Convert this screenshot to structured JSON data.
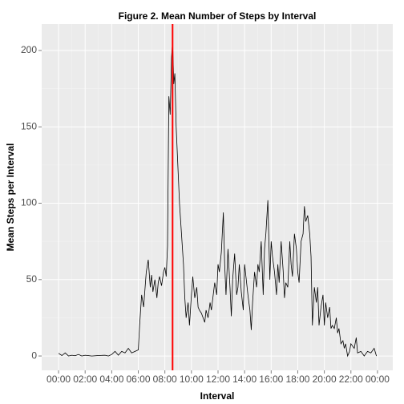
{
  "chart_data": {
    "type": "line",
    "title": "Figure 2. Mean Number of Steps by Interval",
    "x_label": "Interval",
    "y_label": "Mean Steps per Interval",
    "xlim": [
      -1.27,
      25.15
    ],
    "ylim": [
      -9.4,
      217.3
    ],
    "xticks": [
      {
        "value": 0,
        "label": "00:00"
      },
      {
        "value": 2,
        "label": "02:00"
      },
      {
        "value": 4,
        "label": "04:00"
      },
      {
        "value": 6,
        "label": "06:00"
      },
      {
        "value": 8,
        "label": "08:00"
      },
      {
        "value": 10,
        "label": "10:00"
      },
      {
        "value": 12,
        "label": "12:00"
      },
      {
        "value": 14,
        "label": "14:00"
      },
      {
        "value": 16,
        "label": "16:00"
      },
      {
        "value": 18,
        "label": "18:00"
      },
      {
        "value": 20,
        "label": "20:00"
      },
      {
        "value": 22,
        "label": "22:00"
      },
      {
        "value": 24,
        "label": "00:00"
      }
    ],
    "yticks": [
      0,
      50,
      100,
      150,
      200
    ],
    "grid": true,
    "vline": {
      "value": 8.58,
      "color": "#ff0000"
    },
    "series": [
      {
        "color": "#000000",
        "x": [
          0,
          0.25,
          0.5,
          0.75,
          1,
          1.25,
          1.5,
          1.75,
          2,
          2.5,
          3,
          3.5,
          3.75,
          4,
          4.25,
          4.5,
          4.75,
          5,
          5.25,
          5.5,
          5.75,
          6,
          6.1,
          6.25,
          6.4,
          6.6,
          6.75,
          6.9,
          7,
          7.1,
          7.25,
          7.4,
          7.5,
          7.6,
          7.75,
          7.9,
          8,
          8.1,
          8.2,
          8.3,
          8.4,
          8.5,
          8.58,
          8.67,
          8.75,
          8.85,
          9,
          9.1,
          9.25,
          9.4,
          9.5,
          9.6,
          9.75,
          9.85,
          10,
          10.1,
          10.25,
          10.4,
          10.5,
          10.6,
          10.75,
          11,
          11.1,
          11.25,
          11.4,
          11.5,
          11.75,
          11.9,
          12,
          12.1,
          12.25,
          12.4,
          12.5,
          12.6,
          12.75,
          12.9,
          13,
          13.1,
          13.25,
          13.4,
          13.5,
          13.6,
          13.75,
          13.9,
          14,
          14.25,
          14.4,
          14.5,
          14.6,
          14.75,
          14.9,
          15,
          15.1,
          15.25,
          15.4,
          15.5,
          15.6,
          15.75,
          15.9,
          16,
          16.1,
          16.25,
          16.4,
          16.5,
          16.6,
          16.75,
          16.9,
          17,
          17.1,
          17.25,
          17.4,
          17.5,
          17.6,
          17.75,
          17.9,
          18,
          18.1,
          18.25,
          18.4,
          18.5,
          18.6,
          18.75,
          18.9,
          19,
          19.1,
          19.25,
          19.4,
          19.5,
          19.6,
          19.75,
          19.9,
          20,
          20.1,
          20.25,
          20.4,
          20.5,
          20.6,
          20.75,
          20.9,
          21,
          21.1,
          21.25,
          21.4,
          21.5,
          21.6,
          21.75,
          21.9,
          22,
          22.25,
          22.4,
          22.5,
          22.75,
          23,
          23.25,
          23.5,
          23.75,
          23.92
        ],
        "values": [
          1.7,
          0.3,
          2,
          0,
          0.5,
          0.2,
          1,
          0,
          0.5,
          0,
          0.3,
          0.5,
          0,
          1,
          3,
          0.5,
          3,
          2,
          5,
          2,
          3,
          4,
          20,
          40,
          32,
          55,
          63,
          45,
          53,
          42,
          50,
          38,
          48,
          52,
          46,
          55,
          58,
          52,
          72,
          170,
          158,
          195,
          206,
          178,
          185,
          150,
          120,
          100,
          80,
          60,
          38,
          25,
          35,
          20,
          40,
          52,
          38,
          45,
          32,
          30,
          28,
          22,
          30,
          25,
          35,
          30,
          48,
          40,
          60,
          55,
          68,
          94,
          60,
          40,
          70,
          45,
          26,
          50,
          67,
          40,
          45,
          60,
          42,
          30,
          60,
          40,
          30,
          17,
          35,
          55,
          45,
          60,
          55,
          75,
          40,
          70,
          80,
          102,
          50,
          75,
          65,
          55,
          40,
          60,
          48,
          75,
          56,
          38,
          48,
          45,
          75,
          60,
          52,
          80,
          70,
          55,
          48,
          75,
          80,
          98,
          88,
          92,
          80,
          65,
          20,
          45,
          35,
          45,
          20,
          32,
          40,
          20,
          35,
          25,
          32,
          18,
          20,
          18,
          25,
          15,
          18,
          8,
          10,
          5,
          8,
          0,
          3,
          8,
          5,
          12,
          2,
          3,
          0,
          3,
          2,
          5,
          0
        ]
      }
    ]
  }
}
